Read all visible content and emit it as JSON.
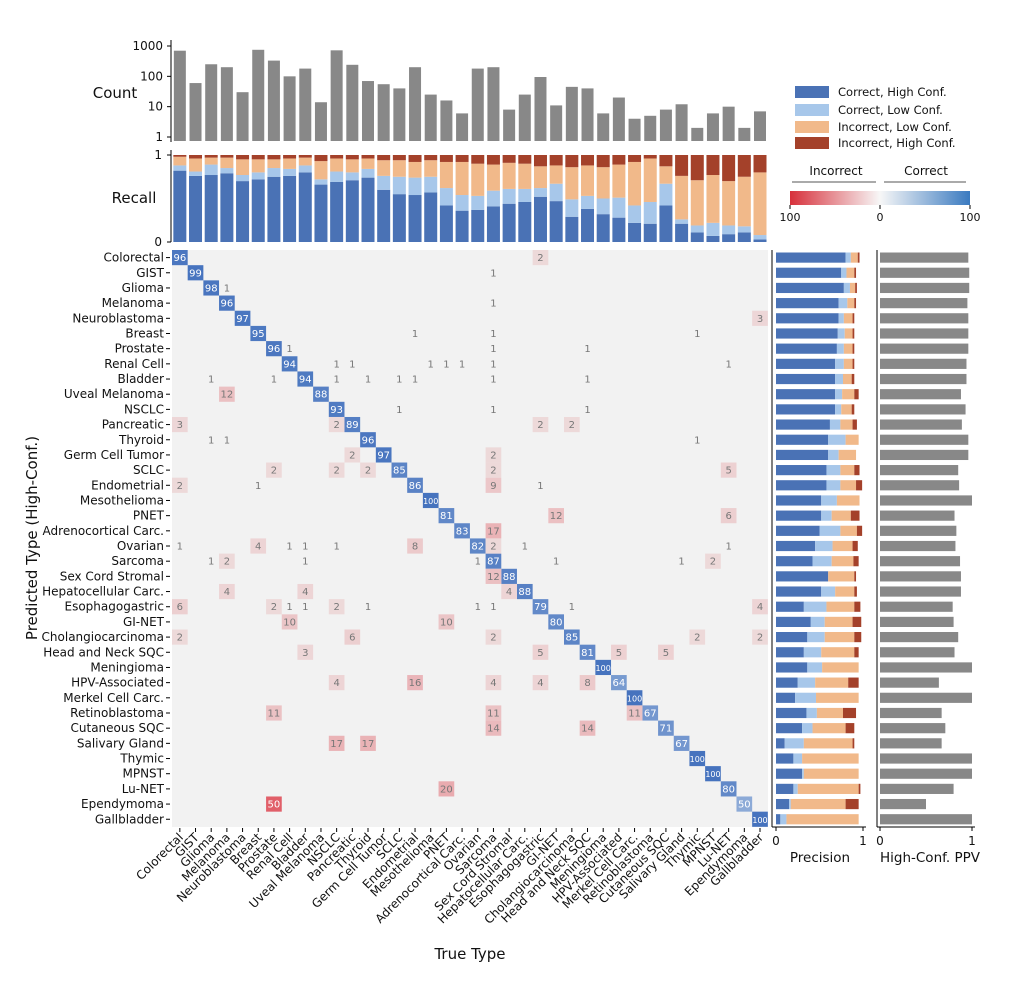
{
  "chart_data": {
    "type": "heatmap",
    "title": "",
    "xlabel": "True Type",
    "ylabel": "Predicted Type (High-Conf.)",
    "categories": [
      "Colorectal",
      "GIST",
      "Glioma",
      "Melanoma",
      "Neuroblastoma",
      "Breast",
      "Prostate",
      "Renal Cell",
      "Bladder",
      "Uveal Melanoma",
      "NSCLC",
      "Pancreatic",
      "Thyroid",
      "Germ Cell Tumor",
      "SCLC",
      "Endometrial",
      "Mesothelioma",
      "PNET",
      "Adrenocortical Carc.",
      "Ovarian",
      "Sarcoma",
      "Sex Cord Stromal",
      "Hepatocellular Carc.",
      "Esophagogastric",
      "GI-NET",
      "Cholangiocarcinoma",
      "Head and Neck SQC",
      "Meningioma",
      "HPV-Associated",
      "Merkel Cell Carc.",
      "Retinoblastoma",
      "Cutaneous SQC",
      "Salivary Gland",
      "Thymic",
      "MPNST",
      "Lu-NET",
      "Ependymoma",
      "Gallbladder"
    ],
    "diagonal": [
      96,
      99,
      98,
      96,
      97,
      95,
      96,
      94,
      94,
      88,
      93,
      89,
      96,
      97,
      85,
      86,
      100,
      81,
      83,
      82,
      87,
      88,
      88,
      79,
      80,
      85,
      81,
      100,
      64,
      100,
      67,
      71,
      67,
      100,
      100,
      80,
      50,
      100
    ],
    "off_diagonal": [
      [
        0,
        23,
        2
      ],
      [
        1,
        20,
        1
      ],
      [
        2,
        3,
        1
      ],
      [
        3,
        20,
        1
      ],
      [
        4,
        37,
        3
      ],
      [
        5,
        15,
        1
      ],
      [
        5,
        20,
        1
      ],
      [
        5,
        33,
        1
      ],
      [
        6,
        7,
        1
      ],
      [
        6,
        20,
        1
      ],
      [
        6,
        26,
        1
      ],
      [
        7,
        10,
        1
      ],
      [
        7,
        11,
        1
      ],
      [
        7,
        16,
        1
      ],
      [
        7,
        17,
        1
      ],
      [
        7,
        18,
        1
      ],
      [
        7,
        20,
        1
      ],
      [
        7,
        35,
        1
      ],
      [
        8,
        2,
        1
      ],
      [
        8,
        6,
        1
      ],
      [
        8,
        10,
        1
      ],
      [
        8,
        12,
        1
      ],
      [
        8,
        14,
        1
      ],
      [
        8,
        15,
        1
      ],
      [
        8,
        20,
        1
      ],
      [
        8,
        26,
        1
      ],
      [
        9,
        3,
        12
      ],
      [
        10,
        14,
        1
      ],
      [
        10,
        20,
        1
      ],
      [
        10,
        26,
        1
      ],
      [
        11,
        0,
        3
      ],
      [
        11,
        10,
        2
      ],
      [
        11,
        23,
        2
      ],
      [
        11,
        25,
        2
      ],
      [
        12,
        2,
        1
      ],
      [
        12,
        3,
        1
      ],
      [
        12,
        33,
        1
      ],
      [
        13,
        11,
        2
      ],
      [
        13,
        20,
        2
      ],
      [
        14,
        6,
        2
      ],
      [
        14,
        10,
        2
      ],
      [
        14,
        12,
        2
      ],
      [
        14,
        20,
        2
      ],
      [
        14,
        35,
        5
      ],
      [
        15,
        0,
        2
      ],
      [
        15,
        5,
        1
      ],
      [
        15,
        20,
        9
      ],
      [
        15,
        23,
        1
      ],
      [
        17,
        24,
        12
      ],
      [
        17,
        35,
        6
      ],
      [
        18,
        20,
        17
      ],
      [
        19,
        0,
        1
      ],
      [
        19,
        5,
        4
      ],
      [
        19,
        7,
        1
      ],
      [
        19,
        8,
        1
      ],
      [
        19,
        10,
        1
      ],
      [
        19,
        15,
        8
      ],
      [
        19,
        20,
        2
      ],
      [
        19,
        22,
        1
      ],
      [
        19,
        35,
        1
      ],
      [
        20,
        2,
        1
      ],
      [
        20,
        3,
        2
      ],
      [
        20,
        8,
        1
      ],
      [
        20,
        19,
        1
      ],
      [
        20,
        24,
        1
      ],
      [
        20,
        32,
        1
      ],
      [
        20,
        34,
        2
      ],
      [
        21,
        20,
        12
      ],
      [
        22,
        3,
        4
      ],
      [
        22,
        8,
        4
      ],
      [
        22,
        21,
        4
      ],
      [
        23,
        0,
        6
      ],
      [
        23,
        6,
        2
      ],
      [
        23,
        7,
        1
      ],
      [
        23,
        8,
        1
      ],
      [
        23,
        10,
        2
      ],
      [
        23,
        12,
        1
      ],
      [
        23,
        19,
        1
      ],
      [
        23,
        20,
        1
      ],
      [
        23,
        25,
        1
      ],
      [
        23,
        37,
        4
      ],
      [
        24,
        7,
        10
      ],
      [
        24,
        17,
        10
      ],
      [
        25,
        0,
        2
      ],
      [
        25,
        11,
        6
      ],
      [
        25,
        20,
        2
      ],
      [
        25,
        33,
        2
      ],
      [
        25,
        37,
        2
      ],
      [
        26,
        8,
        3
      ],
      [
        26,
        23,
        5
      ],
      [
        26,
        28,
        5
      ],
      [
        26,
        31,
        5
      ],
      [
        28,
        10,
        4
      ],
      [
        28,
        15,
        16
      ],
      [
        28,
        20,
        4
      ],
      [
        28,
        23,
        4
      ],
      [
        28,
        26,
        8
      ],
      [
        30,
        6,
        11
      ],
      [
        30,
        20,
        11
      ],
      [
        30,
        29,
        11
      ],
      [
        31,
        20,
        14
      ],
      [
        31,
        26,
        14
      ],
      [
        32,
        10,
        17
      ],
      [
        32,
        12,
        17
      ],
      [
        35,
        17,
        20
      ],
      [
        36,
        6,
        50
      ]
    ],
    "count": {
      "label": "Count",
      "scale": "log",
      "ticks": [
        "1",
        "10",
        "100",
        "1000"
      ],
      "values": [
        700,
        60,
        250,
        200,
        30,
        750,
        330,
        100,
        180,
        14,
        720,
        240,
        70,
        55,
        40,
        200,
        25,
        16,
        6,
        180,
        200,
        8,
        25,
        95,
        11,
        45,
        40,
        6,
        20,
        4,
        5,
        8,
        12,
        2,
        6,
        10,
        2,
        7
      ]
    },
    "recall": {
      "label": "Recall",
      "ticks": [
        "0",
        "1"
      ],
      "series": [
        {
          "name": "Correct, High Conf.",
          "values": [
            0.82,
            0.76,
            0.77,
            0.79,
            0.7,
            0.72,
            0.75,
            0.76,
            0.8,
            0.66,
            0.69,
            0.71,
            0.74,
            0.6,
            0.55,
            0.54,
            0.57,
            0.42,
            0.36,
            0.37,
            0.41,
            0.44,
            0.46,
            0.52,
            0.47,
            0.29,
            0.38,
            0.32,
            0.28,
            0.22,
            0.21,
            0.42,
            0.21,
            0.11,
            0.07,
            0.09,
            0.11,
            0.03
          ]
        },
        {
          "name": "Correct, Low Conf.",
          "values": [
            0.06,
            0.05,
            0.12,
            0.06,
            0.07,
            0.08,
            0.1,
            0.08,
            0.08,
            0.06,
            0.12,
            0.09,
            0.1,
            0.16,
            0.2,
            0.2,
            0.18,
            0.2,
            0.18,
            0.16,
            0.18,
            0.17,
            0.15,
            0.1,
            0.2,
            0.2,
            0.15,
            0.18,
            0.23,
            0.2,
            0.25,
            0.25,
            0.05,
            0.08,
            0.15,
            0.1,
            0.07,
            0.05
          ]
        },
        {
          "name": "Incorrect, Low Conf.",
          "values": [
            0.1,
            0.15,
            0.08,
            0.12,
            0.18,
            0.15,
            0.1,
            0.12,
            0.09,
            0.21,
            0.15,
            0.15,
            0.12,
            0.18,
            0.19,
            0.18,
            0.19,
            0.3,
            0.38,
            0.37,
            0.3,
            0.3,
            0.29,
            0.25,
            0.21,
            0.37,
            0.35,
            0.36,
            0.38,
            0.5,
            0.5,
            0.2,
            0.5,
            0.52,
            0.55,
            0.51,
            0.57,
            0.72
          ]
        },
        {
          "name": "Incorrect, High Conf.",
          "values": [
            0.02,
            0.04,
            0.03,
            0.03,
            0.05,
            0.05,
            0.05,
            0.04,
            0.03,
            0.07,
            0.04,
            0.05,
            0.04,
            0.06,
            0.06,
            0.08,
            0.06,
            0.08,
            0.08,
            0.1,
            0.11,
            0.09,
            0.1,
            0.13,
            0.12,
            0.14,
            0.12,
            0.14,
            0.11,
            0.08,
            0.04,
            0.13,
            0.24,
            0.29,
            0.23,
            0.3,
            0.25,
            0.2
          ]
        }
      ]
    },
    "precision": {
      "label": "Precision",
      "ticks": [
        "0",
        "1"
      ],
      "series": [
        {
          "name": "Correct, High Conf.",
          "values": [
            0.8,
            0.75,
            0.78,
            0.72,
            0.72,
            0.71,
            0.7,
            0.68,
            0.68,
            0.68,
            0.68,
            0.62,
            0.6,
            0.6,
            0.58,
            0.58,
            0.52,
            0.52,
            0.5,
            0.45,
            0.42,
            0.6,
            0.52,
            0.32,
            0.4,
            0.36,
            0.32,
            0.36,
            0.25,
            0.22,
            0.35,
            0.3,
            0.1,
            0.2,
            0.3,
            0.2,
            0.15,
            0.05
          ]
        },
        {
          "name": "Correct, Low Conf.",
          "values": [
            0.06,
            0.06,
            0.07,
            0.1,
            0.06,
            0.08,
            0.08,
            0.1,
            0.09,
            0.08,
            0.07,
            0.12,
            0.2,
            0.12,
            0.16,
            0.16,
            0.18,
            0.12,
            0.24,
            0.2,
            0.22,
            0.0,
            0.16,
            0.26,
            0.16,
            0.2,
            0.2,
            0.17,
            0.2,
            0.24,
            0.12,
            0.12,
            0.22,
            0.1,
            0.02,
            0.05,
            0.02,
            0.07
          ]
        },
        {
          "name": "Incorrect, Low Conf.",
          "values": [
            0.08,
            0.09,
            0.06,
            0.08,
            0.1,
            0.09,
            0.1,
            0.1,
            0.1,
            0.14,
            0.12,
            0.14,
            0.15,
            0.2,
            0.16,
            0.18,
            0.26,
            0.22,
            0.19,
            0.23,
            0.25,
            0.3,
            0.22,
            0.32,
            0.32,
            0.34,
            0.38,
            0.42,
            0.38,
            0.49,
            0.3,
            0.38,
            0.56,
            0.65,
            0.63,
            0.7,
            0.63,
            0.83
          ]
        },
        {
          "name": "Incorrect, High Conf.",
          "values": [
            0.02,
            0.02,
            0.02,
            0.02,
            0.02,
            0.02,
            0.02,
            0.02,
            0.03,
            0.05,
            0.03,
            0.05,
            0.0,
            0.0,
            0.06,
            0.07,
            0.0,
            0.1,
            0.06,
            0.06,
            0.06,
            0.02,
            0.03,
            0.07,
            0.1,
            0.08,
            0.05,
            0.0,
            0.12,
            0.0,
            0.15,
            0.1,
            0.02,
            0.0,
            0.0,
            0.02,
            0.15,
            0.0
          ]
        }
      ]
    },
    "ppv": {
      "label": "High-Conf. PPV",
      "ticks": [
        "0",
        "1"
      ],
      "values": [
        0.96,
        0.97,
        0.97,
        0.95,
        0.96,
        0.96,
        0.96,
        0.94,
        0.94,
        0.88,
        0.93,
        0.89,
        0.96,
        0.96,
        0.85,
        0.86,
        1.0,
        0.81,
        0.83,
        0.82,
        0.87,
        0.88,
        0.88,
        0.79,
        0.8,
        0.85,
        0.81,
        1.0,
        0.64,
        1.0,
        0.67,
        0.71,
        0.67,
        1.0,
        1.0,
        0.8,
        0.5,
        1.0
      ]
    },
    "legend": {
      "placement": "top-right",
      "items": [
        "Correct, High Conf.",
        "Correct, Low Conf.",
        "Incorrect, Low Conf.",
        "Incorrect, High Conf."
      ],
      "colors": [
        "#4a72b5",
        "#a7c7ea",
        "#f1b98a",
        "#a4412a"
      ]
    },
    "colorbar": {
      "left_label": "Incorrect",
      "right_label": "Correct",
      "tick_labels": [
        "100",
        "0",
        "100"
      ]
    }
  }
}
